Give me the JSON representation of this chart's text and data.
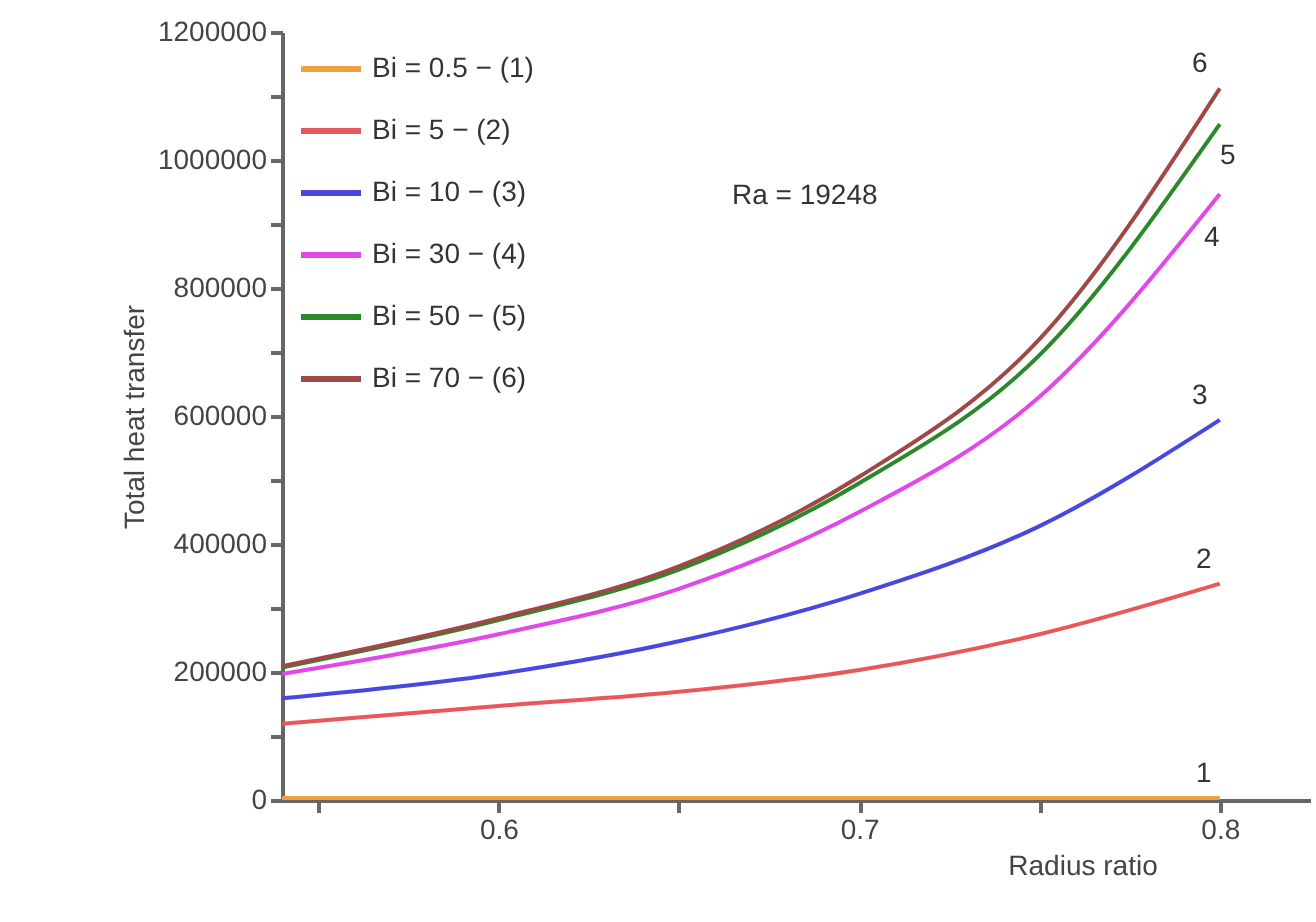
{
  "chart_data": {
    "type": "line",
    "xlabel": "Radius ratio",
    "ylabel": "Total heat transfer",
    "x": [
      0.54,
      0.6,
      0.65,
      0.7,
      0.75,
      0.8
    ],
    "series": [
      {
        "name": "Bi = 0.5  − (1)",
        "color": "#f0a040",
        "values": [
          3000,
          3000,
          3000,
          3000,
          3000,
          3000
        ]
      },
      {
        "name": "Bi = 5     − (2)",
        "color": "#e85858",
        "values": [
          119000,
          147000,
          169000,
          203000,
          259000,
          338000
        ]
      },
      {
        "name": "Bi = 10   − (3)",
        "color": "#4848e0",
        "values": [
          159000,
          197000,
          248000,
          322000,
          428000,
          594000
        ]
      },
      {
        "name": "Bi = 30   − (4)",
        "color": "#e048e8",
        "values": [
          197000,
          259000,
          330000,
          450000,
          630000,
          947000
        ]
      },
      {
        "name": "Bi = 50   − (5)",
        "color": "#2a8a2a",
        "values": [
          207000,
          281000,
          360000,
          495000,
          695000,
          1056000
        ]
      },
      {
        "name": "Bi = 70   − (6)",
        "color": "#a04848",
        "values": [
          209000,
          284000,
          365000,
          505000,
          720000,
          1112000
        ]
      }
    ],
    "xlim": [
      0.54,
      0.825
    ],
    "ylim": [
      0,
      1200000
    ],
    "xticks": [
      {
        "value": 0.55,
        "label": null
      },
      0.6,
      {
        "value": 0.65,
        "label": null
      },
      0.7,
      {
        "value": 0.75,
        "label": null
      },
      0.8
    ],
    "yticks": [
      0,
      {
        "value": 100000,
        "label": null
      },
      200000,
      {
        "value": 300000,
        "label": null
      },
      400000,
      {
        "value": 500000,
        "label": null
      },
      600000,
      {
        "value": 700000,
        "label": null
      },
      800000,
      {
        "value": 900000,
        "label": null
      },
      1000000,
      {
        "value": 1100000,
        "label": null
      },
      1200000
    ],
    "annotations": [
      "Ra = 19248",
      "1",
      "2",
      "3",
      "4",
      "5",
      "6"
    ],
    "grid": false,
    "legend": "top left",
    "marker": "none",
    "line_style": "solid"
  }
}
